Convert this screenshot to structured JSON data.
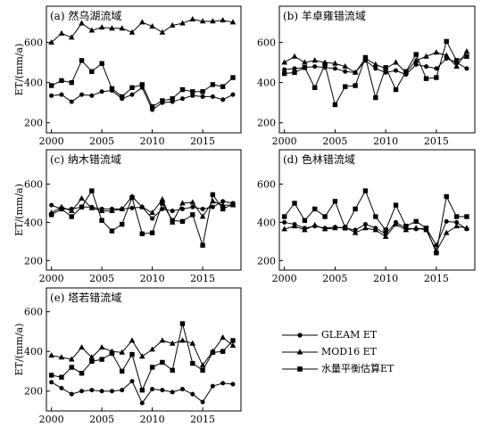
{
  "chart_data": [
    {
      "type": "line",
      "title": "(a) 然乌湖流域",
      "xlabel": "",
      "ylabel": "ET/(mm/a)",
      "x": [
        2000,
        2001,
        2002,
        2003,
        2004,
        2005,
        2006,
        2007,
        2008,
        2009,
        2010,
        2011,
        2012,
        2013,
        2014,
        2015,
        2016,
        2017,
        2018
      ],
      "xlim": [
        1999.5,
        2018.8
      ],
      "ylim": [
        150,
        780
      ],
      "yticks": [
        200,
        400,
        600
      ],
      "xticks": [
        2000,
        2005,
        2010,
        2015
      ],
      "series": [
        {
          "name": "GLEAM ET",
          "marker": "circle",
          "values": [
            335,
            340,
            305,
            340,
            335,
            355,
            360,
            320,
            340,
            375,
            265,
            300,
            305,
            320,
            335,
            330,
            330,
            315,
            340
          ]
        },
        {
          "name": "MOD16 ET",
          "marker": "triangle",
          "values": [
            600,
            645,
            625,
            695,
            660,
            675,
            670,
            670,
            650,
            700,
            680,
            650,
            685,
            695,
            715,
            705,
            705,
            710,
            700
          ]
        },
        {
          "name": "水量平衡估算ET",
          "marker": "square",
          "values": [
            385,
            410,
            400,
            510,
            455,
            495,
            370,
            330,
            375,
            390,
            280,
            310,
            320,
            365,
            355,
            355,
            390,
            380,
            425
          ]
        }
      ]
    },
    {
      "type": "line",
      "title": "(b) 羊卓雍错流域",
      "xlabel": "",
      "ylabel": "",
      "x": [
        2000,
        2001,
        2002,
        2003,
        2004,
        2005,
        2006,
        2007,
        2008,
        2009,
        2010,
        2011,
        2012,
        2013,
        2014,
        2015,
        2016,
        2017,
        2018
      ],
      "xlim": [
        1999.5,
        2018.8
      ],
      "ylim": [
        150,
        780
      ],
      "yticks": [
        200,
        400,
        600
      ],
      "xticks": [
        2000,
        2005,
        2010,
        2015
      ],
      "series": [
        {
          "name": "GLEAM ET",
          "marker": "circle",
          "values": [
            465,
            470,
            475,
            480,
            475,
            470,
            455,
            450,
            510,
            470,
            450,
            460,
            440,
            490,
            480,
            470,
            520,
            500,
            470
          ]
        },
        {
          "name": "MOD16 ET",
          "marker": "triangle",
          "values": [
            500,
            530,
            500,
            510,
            500,
            495,
            480,
            450,
            520,
            490,
            470,
            500,
            450,
            510,
            530,
            550,
            535,
            480,
            555
          ]
        },
        {
          "name": "水量平衡估算ET",
          "marker": "square",
          "values": [
            445,
            450,
            475,
            375,
            490,
            290,
            380,
            385,
            525,
            325,
            475,
            365,
            455,
            540,
            420,
            425,
            605,
            510,
            530
          ]
        }
      ]
    },
    {
      "type": "line",
      "title": "(c) 纳木错流域",
      "xlabel": "",
      "ylabel": "ET/(mm/a)",
      "x": [
        2000,
        2001,
        2002,
        2003,
        2004,
        2005,
        2006,
        2007,
        2008,
        2009,
        2010,
        2011,
        2012,
        2013,
        2014,
        2015,
        2016,
        2017,
        2018
      ],
      "xlim": [
        1999.5,
        2018.8
      ],
      "ylim": [
        150,
        780
      ],
      "yticks": [
        200,
        400,
        600
      ],
      "xticks": [
        2000,
        2005,
        2010,
        2015
      ],
      "series": [
        {
          "name": "GLEAM ET",
          "marker": "circle",
          "values": [
            490,
            470,
            470,
            480,
            480,
            470,
            470,
            470,
            475,
            480,
            420,
            470,
            460,
            470,
            480,
            470,
            480,
            510,
            500
          ]
        },
        {
          "name": "MOD16 ET",
          "marker": "triangle",
          "values": [
            450,
            480,
            460,
            525,
            475,
            460,
            460,
            470,
            535,
            480,
            450,
            520,
            400,
            500,
            505,
            430,
            510,
            490,
            490
          ]
        },
        {
          "name": "水量平衡估算ET",
          "marker": "square",
          "values": [
            440,
            470,
            430,
            480,
            565,
            410,
            355,
            390,
            530,
            340,
            345,
            500,
            410,
            405,
            440,
            280,
            545,
            470,
            495
          ]
        }
      ]
    },
    {
      "type": "line",
      "title": "(d) 色林错流域",
      "xlabel": "",
      "ylabel": "",
      "x": [
        2000,
        2001,
        2002,
        2003,
        2004,
        2005,
        2006,
        2007,
        2008,
        2009,
        2010,
        2011,
        2012,
        2013,
        2014,
        2015,
        2016,
        2017,
        2018
      ],
      "xlim": [
        1999.5,
        2018.8
      ],
      "ylim": [
        150,
        780
      ],
      "yticks": [
        200,
        400,
        600
      ],
      "xticks": [
        2000,
        2005,
        2010,
        2015
      ],
      "series": [
        {
          "name": "GLEAM ET",
          "marker": "circle",
          "values": [
            400,
            390,
            370,
            380,
            370,
            375,
            370,
            360,
            390,
            370,
            340,
            400,
            370,
            365,
            370,
            280,
            405,
            400,
            365
          ]
        },
        {
          "name": "MOD16 ET",
          "marker": "triangle",
          "values": [
            365,
            380,
            360,
            385,
            365,
            370,
            375,
            345,
            370,
            360,
            325,
            390,
            360,
            370,
            360,
            250,
            345,
            380,
            370
          ]
        },
        {
          "name": "水量平衡估算ET",
          "marker": "square",
          "values": [
            430,
            500,
            410,
            470,
            430,
            510,
            370,
            470,
            565,
            430,
            360,
            490,
            380,
            405,
            370,
            240,
            535,
            430,
            430
          ]
        }
      ]
    },
    {
      "type": "line",
      "title": "(e) 塔若错流域",
      "xlabel": "",
      "ylabel": "ET/(mm/a)",
      "x": [
        2000,
        2001,
        2002,
        2003,
        2004,
        2005,
        2006,
        2007,
        2008,
        2009,
        2010,
        2011,
        2012,
        2013,
        2014,
        2015,
        2016,
        2017,
        2018
      ],
      "xlim": [
        1999.5,
        2018.8
      ],
      "ylim": [
        100,
        720
      ],
      "yticks": [
        200,
        400,
        600
      ],
      "xticks": [
        2000,
        2005,
        2010,
        2015
      ],
      "series": [
        {
          "name": "GLEAM ET",
          "marker": "circle",
          "values": [
            245,
            215,
            185,
            200,
            205,
            200,
            200,
            205,
            250,
            140,
            210,
            205,
            195,
            210,
            185,
            145,
            225,
            240,
            235
          ]
        },
        {
          "name": "MOD16 ET",
          "marker": "triangle",
          "values": [
            380,
            370,
            360,
            420,
            370,
            420,
            400,
            395,
            455,
            375,
            410,
            455,
            440,
            455,
            440,
            330,
            400,
            470,
            430
          ]
        },
        {
          "name": "水量平衡估算ET",
          "marker": "square",
          "values": [
            280,
            270,
            320,
            290,
            350,
            360,
            390,
            300,
            385,
            205,
            320,
            345,
            305,
            540,
            340,
            305,
            395,
            400,
            455
          ]
        }
      ]
    }
  ],
  "legend": {
    "placement": "bottom-right",
    "items": [
      {
        "label": "GLEAM ET",
        "marker": "circle"
      },
      {
        "label": "MOD16 ET",
        "marker": "triangle"
      },
      {
        "label": "水量平衡估算ET",
        "marker": "square"
      }
    ]
  }
}
